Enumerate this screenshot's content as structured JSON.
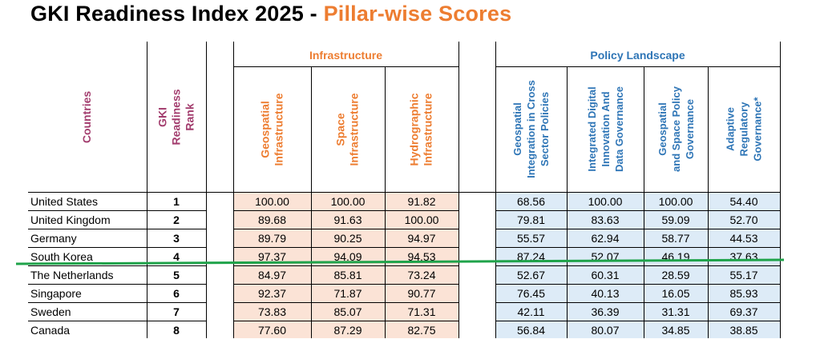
{
  "title": {
    "main": "GKI Readiness Index 2025 -",
    "sub": "Pillar-wise Scores"
  },
  "colors": {
    "infra_text": "#ED7D31",
    "infra_bg": "#FBE3D6",
    "policy_text": "#2E75B6",
    "policy_bg": "#DDEBF7",
    "countries_text": "#A33D6E",
    "line": "#1FA34A"
  },
  "groups": {
    "infrastructure": "Infrastructure",
    "policy": "Policy Landscape"
  },
  "headers": {
    "countries": "Countries",
    "rank": "GKI\nReadiness\nRank",
    "geo_infra": "Geospatial\nInfrastructure",
    "space_infra": "Space\nInfrastructure",
    "hydro_infra": "Hydrographic\nInfrastructure",
    "geo_integration": "Geospatial\nIntegration in Cross\nSector Policies",
    "digital_innov": "Integrated Digital\nInnovation And\nData Governance",
    "geo_space_policy": "Geospatial\nand Space Policy\nGovernance",
    "adaptive_reg": "Adaptive\nRegulatory\nGovernance*"
  },
  "rows": [
    {
      "country": "United States",
      "rank": "1",
      "geo": "100.00",
      "space": "100.00",
      "hydro": "91.82",
      "integ": "68.56",
      "digital": "100.00",
      "gspol": "100.00",
      "adapt": "54.40"
    },
    {
      "country": "United Kingdom",
      "rank": "2",
      "geo": "89.68",
      "space": "91.63",
      "hydro": "100.00",
      "integ": "79.81",
      "digital": "83.63",
      "gspol": "59.09",
      "adapt": "52.70"
    },
    {
      "country": "Germany",
      "rank": "3",
      "geo": "89.79",
      "space": "90.25",
      "hydro": "94.97",
      "integ": "55.57",
      "digital": "62.94",
      "gspol": "58.77",
      "adapt": "44.53"
    },
    {
      "country": "South Korea",
      "rank": "4",
      "geo": "97.37",
      "space": "94.09",
      "hydro": "94.53",
      "integ": "87.24",
      "digital": "52.07",
      "gspol": "46.19",
      "adapt": "37.63"
    },
    {
      "country": "The Netherlands",
      "rank": "5",
      "geo": "84.97",
      "space": "85.81",
      "hydro": "73.24",
      "integ": "52.67",
      "digital": "60.31",
      "gspol": "28.59",
      "adapt": "55.17"
    },
    {
      "country": "Singapore",
      "rank": "6",
      "geo": "92.37",
      "space": "71.87",
      "hydro": "90.77",
      "integ": "76.45",
      "digital": "40.13",
      "gspol": "16.05",
      "adapt": "85.93"
    },
    {
      "country": "Sweden",
      "rank": "7",
      "geo": "73.83",
      "space": "85.07",
      "hydro": "71.31",
      "integ": "42.11",
      "digital": "36.39",
      "gspol": "31.31",
      "adapt": "69.37"
    },
    {
      "country": "Canada",
      "rank": "8",
      "geo": "77.60",
      "space": "87.29",
      "hydro": "82.75",
      "integ": "56.84",
      "digital": "80.07",
      "gspol": "34.85",
      "adapt": "38.85"
    }
  ]
}
